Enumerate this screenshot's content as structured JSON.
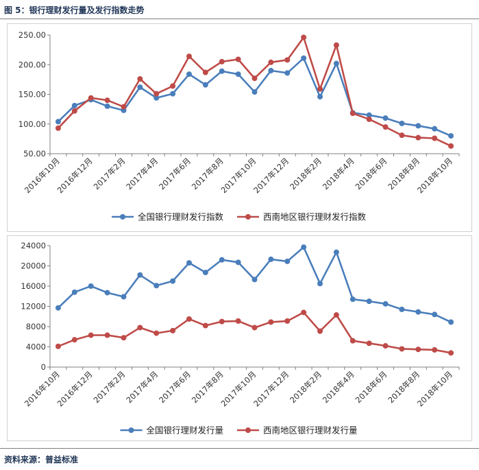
{
  "figure": {
    "title": "图 5：银行理财发行量及发行指数走势",
    "source": "资料来源：普益标准"
  },
  "colors": {
    "national": "#4a7ebb",
    "southwest": "#be4b48",
    "axis": "#7f7f7f"
  },
  "chart_data": [
    {
      "type": "line",
      "x": [
        "2016年10月",
        "2016年11月",
        "2016年12月",
        "2017年1月",
        "2017年2月",
        "2017年3月",
        "2017年4月",
        "2017年5月",
        "2017年6月",
        "2017年7月",
        "2017年8月",
        "2017年9月",
        "2017年10月",
        "2017年11月",
        "2017年12月",
        "2018年1月",
        "2018年2月",
        "2018年3月",
        "2018年4月",
        "2018年5月",
        "2018年6月",
        "2018年7月",
        "2018年8月",
        "2018年9月",
        "2018年10月"
      ],
      "tick_labels": [
        "2016年10月",
        "2016年12月",
        "2017年2月",
        "2017年4月",
        "2017年6月",
        "2017年8月",
        "2017年10月",
        "2017年12月",
        "2018年2月",
        "2018年4月",
        "2018年6月",
        "2018年8月",
        "2018年10月"
      ],
      "ylim": [
        50,
        250
      ],
      "yticks": [
        "50.00",
        "100.00",
        "150.00",
        "200.00",
        "250.00"
      ],
      "grid": false,
      "legend_position": "bottom",
      "series": [
        {
          "name": "全国银行理财发行指数",
          "color": "#4a7ebb",
          "values": [
            104,
            131,
            141,
            130,
            123,
            162,
            144,
            151,
            184,
            166,
            189,
            184,
            154,
            190,
            186,
            211,
            146,
            202,
            119,
            115,
            110,
            101,
            97,
            92,
            80
          ]
        },
        {
          "name": "西南地区银行理财发行指数",
          "color": "#be4b48",
          "values": [
            93,
            122,
            144,
            140,
            129,
            176,
            151,
            164,
            214,
            187,
            205,
            209,
            177,
            204,
            208,
            246,
            159,
            233,
            118,
            108,
            95,
            81,
            77,
            76,
            63
          ]
        }
      ]
    },
    {
      "type": "line",
      "x": [
        "2016年10月",
        "2016年11月",
        "2016年12月",
        "2017年1月",
        "2017年2月",
        "2017年3月",
        "2017年4月",
        "2017年5月",
        "2017年6月",
        "2017年7月",
        "2017年8月",
        "2017年9月",
        "2017年10月",
        "2017年11月",
        "2017年12月",
        "2018年1月",
        "2018年2月",
        "2018年3月",
        "2018年4月",
        "2018年5月",
        "2018年6月",
        "2018年7月",
        "2018年8月",
        "2018年9月",
        "2018年10月"
      ],
      "tick_labels": [
        "2016年10月",
        "2016年12月",
        "2017年2月",
        "2017年4月",
        "2017年6月",
        "2017年8月",
        "2017年10月",
        "2017年12月",
        "2018年2月",
        "2018年4月",
        "2018年6月",
        "2018年8月",
        "2018年10月"
      ],
      "ylim": [
        0,
        24000
      ],
      "yticks": [
        "0",
        "4000",
        "8000",
        "12000",
        "16000",
        "20000",
        "24000"
      ],
      "grid": false,
      "legend_position": "bottom",
      "series": [
        {
          "name": "全国银行理财发行量",
          "color": "#4a7ebb",
          "values": [
            11700,
            14800,
            16000,
            14700,
            13900,
            18200,
            16100,
            17000,
            20600,
            18700,
            21200,
            20700,
            17300,
            21300,
            20900,
            23700,
            16500,
            22700,
            13400,
            13000,
            12500,
            11400,
            10900,
            10400,
            8900
          ]
        },
        {
          "name": "西南地区银行理财发行量",
          "color": "#be4b48",
          "values": [
            4100,
            5400,
            6300,
            6300,
            5800,
            7800,
            6700,
            7200,
            9500,
            8200,
            9000,
            9100,
            7800,
            8900,
            9100,
            10800,
            7100,
            10300,
            5200,
            4700,
            4200,
            3600,
            3500,
            3400,
            2800
          ]
        }
      ]
    }
  ]
}
